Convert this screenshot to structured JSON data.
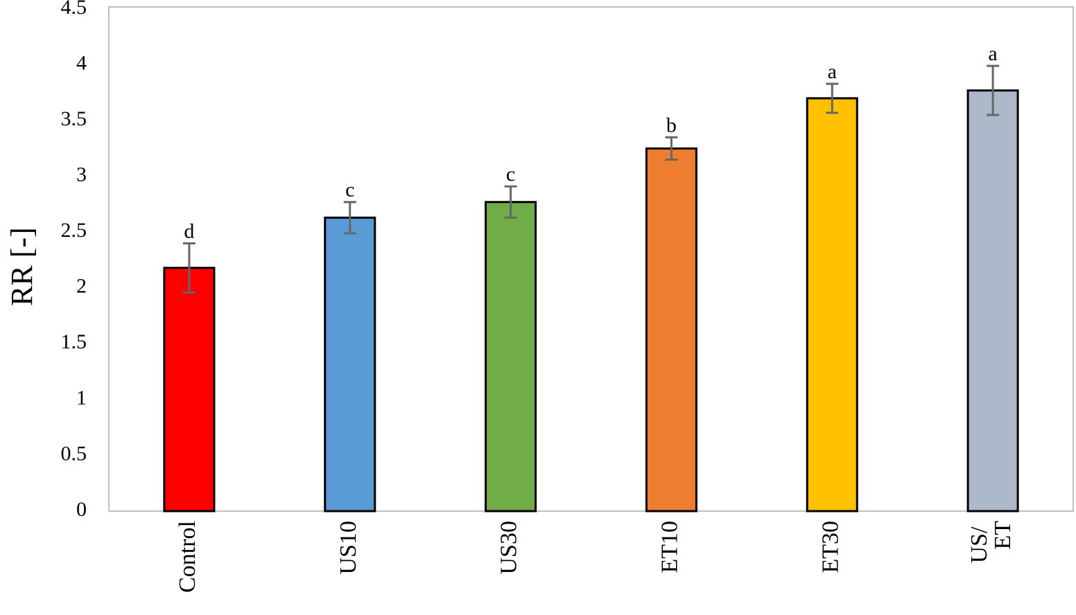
{
  "chart_data": {
    "type": "bar",
    "y_label": "RR [-]",
    "categories": [
      "Control",
      "US10",
      "US30",
      "ET10",
      "ET30",
      "US/ ET"
    ],
    "values": [
      2.18,
      2.63,
      2.77,
      3.25,
      3.7,
      3.77
    ],
    "errors": [
      0.22,
      0.14,
      0.14,
      0.1,
      0.13,
      0.22
    ],
    "annotations": [
      "d",
      "c",
      "c",
      "b",
      "a",
      "a"
    ],
    "colors": [
      "#ff0000",
      "#5b9bd5",
      "#70ad47",
      "#ed7d31",
      "#ffc000",
      "#adb9ca"
    ],
    "ylim": [
      0,
      4.5
    ],
    "yticks": [
      0,
      0.5,
      1,
      1.5,
      2,
      2.5,
      3,
      3.5,
      4,
      4.5
    ],
    "grid": false
  }
}
